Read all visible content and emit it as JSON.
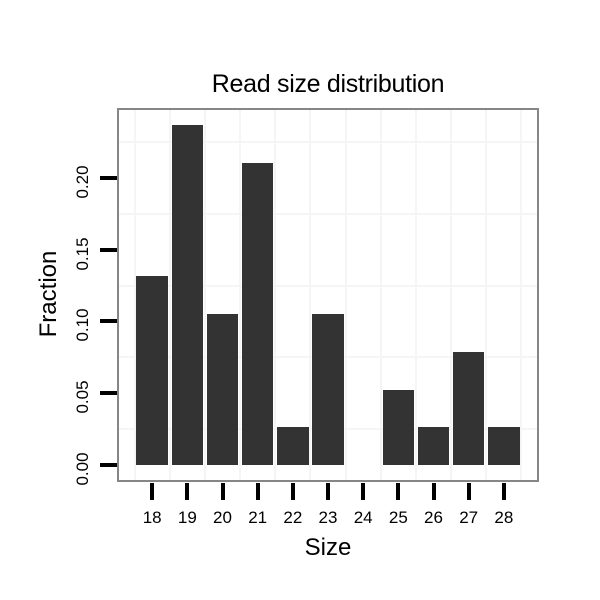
{
  "chart_data": {
    "type": "bar",
    "title": "Read size distribution",
    "xlabel": "Size",
    "ylabel": "Fraction",
    "categories": [
      18,
      19,
      20,
      21,
      22,
      23,
      24,
      25,
      26,
      27,
      28
    ],
    "values": [
      0.1316,
      0.2368,
      0.1053,
      0.2105,
      0.0263,
      0.1053,
      0,
      0.0526,
      0.0263,
      0.0789,
      0.0263
    ],
    "x_tick_labels": [
      "18",
      "19",
      "20",
      "21",
      "22",
      "23",
      "24",
      "25",
      "26",
      "27",
      "28"
    ],
    "y_ticks": [
      0,
      0.05,
      0.1,
      0.15,
      0.2
    ],
    "y_tick_labels": [
      "0.00",
      "0.05",
      "0.10",
      "0.15",
      "0.20"
    ],
    "x_range": [
      17,
      29
    ],
    "y_range": [
      -0.0118,
      0.2486
    ],
    "bar_width_units": 0.9,
    "grid": "minor-only",
    "grid_minor_x": [
      17.5,
      18.5,
      19.5,
      20.5,
      21.5,
      22.5,
      23.5,
      24.5,
      25.5,
      26.5,
      27.5,
      28.5
    ],
    "grid_minor_y": [
      0.025,
      0.075,
      0.125,
      0.175,
      0.225
    ],
    "legend": "none",
    "colors": {
      "bar": "#333333",
      "panel_border": "#868686",
      "grid_minor": "#f5f5f5",
      "background": "#ffffff",
      "text": "#000000",
      "tick": "#000000"
    }
  }
}
